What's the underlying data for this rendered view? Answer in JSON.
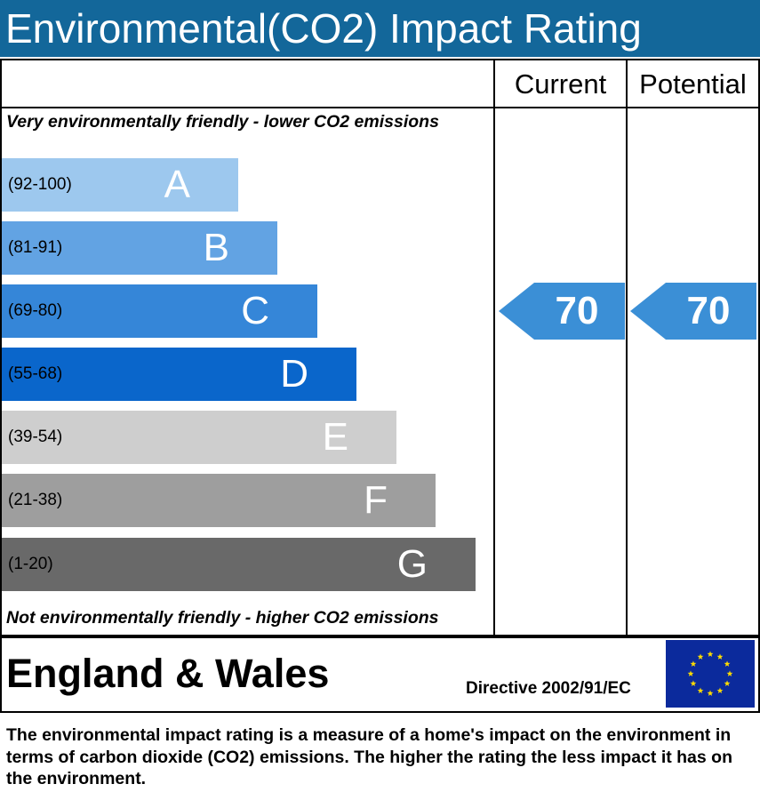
{
  "header": {
    "title": "Environmental(CO2) Impact Rating"
  },
  "columns": {
    "current_label": "Current",
    "potential_label": "Potential"
  },
  "captions": {
    "top": "Very environmentally friendly - lower CO2 emissions",
    "bottom": "Not environmentally friendly - higher CO2 emissions"
  },
  "footer": {
    "region": "England & Wales",
    "directive": "Directive 2002/91/EC",
    "description": "The environmental impact rating is a measure of a home's impact on the environment in terms of carbon dioxide (CO2) emissions. The higher the rating the less impact it has on the environment."
  },
  "colors": {
    "title_bar": "#13679a",
    "arrow": "#3b8fd6",
    "eu_flag_blue": "#0b2a9c",
    "eu_flag_star": "#ffdd00"
  },
  "chart_data": {
    "type": "bar",
    "title": "Environmental(CO2) Impact Rating",
    "bands": [
      {
        "letter": "A",
        "range": "(92-100)",
        "color": "#9dc8ee"
      },
      {
        "letter": "B",
        "range": "(81-91)",
        "color": "#62a3e3"
      },
      {
        "letter": "C",
        "range": "(69-80)",
        "color": "#3586d8"
      },
      {
        "letter": "D",
        "range": "(55-68)",
        "color": "#0a66cb"
      },
      {
        "letter": "E",
        "range": "(39-54)",
        "color": "#cecece"
      },
      {
        "letter": "F",
        "range": "(21-38)",
        "color": "#9e9e9e"
      },
      {
        "letter": "G",
        "range": "(1-20)",
        "color": "#696969"
      }
    ],
    "current": {
      "label": "Current",
      "value": 70
    },
    "potential": {
      "label": "Potential",
      "value": 70
    }
  }
}
